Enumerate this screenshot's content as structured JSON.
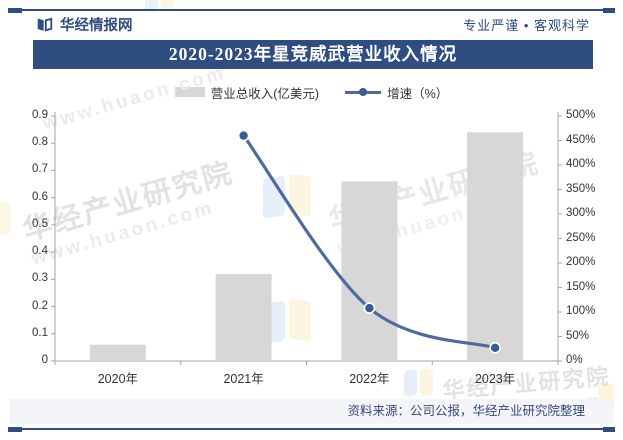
{
  "header": {
    "site_name": "华经情报网",
    "slogan": "专业严谨 • 客观科学"
  },
  "title_bar": {
    "title": "2020-2023年星竞威武营业收入情况"
  },
  "legend": {
    "bar_label": "营业总收入(亿美元)",
    "line_label": "增速（%）"
  },
  "footer": {
    "source_note": "资料来源：公司公报，华经产业研究院整理"
  },
  "watermark": {
    "brand_text": "华经产业研究院",
    "site_url": "www.huaon.com"
  },
  "colors": {
    "navy": "#2f4d80",
    "bar_fill": "#d7d7d7",
    "line": "#4f6b9e",
    "marker_fill": "#3b5a91",
    "marker_stroke": "#ffffff",
    "axis": "#a6a6a6",
    "label": "#333333",
    "footer_bg": "#f3f5f9"
  },
  "chart_data": {
    "type": "bar",
    "subtype": "bar+line combo, dual axis",
    "title": "2020-2023年星竞威武营业收入情况",
    "categories": [
      "2020年",
      "2021年",
      "2022年",
      "2023年"
    ],
    "series": [
      {
        "name": "营业总收入(亿美元)",
        "type": "bar",
        "axis": "left",
        "values": [
          0.06,
          0.32,
          0.66,
          0.84
        ]
      },
      {
        "name": "增速（%）",
        "type": "line",
        "axis": "right",
        "unit": "%",
        "values": [
          null,
          460,
          108,
          27
        ]
      }
    ],
    "left_axis": {
      "min": 0,
      "max": 0.9,
      "step": 0.1,
      "tick_labels": [
        "0",
        "0.1",
        "0.2",
        "0.3",
        "0.4",
        "0.5",
        "0.6",
        "0.7",
        "0.8",
        "0.9"
      ]
    },
    "right_axis": {
      "min": 0,
      "max": 500,
      "step": 50,
      "unit": "%",
      "tick_labels": [
        "0%",
        "50%",
        "100%",
        "150%",
        "200%",
        "250%",
        "300%",
        "350%",
        "400%",
        "450%",
        "500%"
      ]
    },
    "legend_position": "top",
    "grid": false,
    "xlabel": "",
    "ylabel_left": "营业总收入(亿美元)",
    "ylabel_right": "增速（%）"
  }
}
